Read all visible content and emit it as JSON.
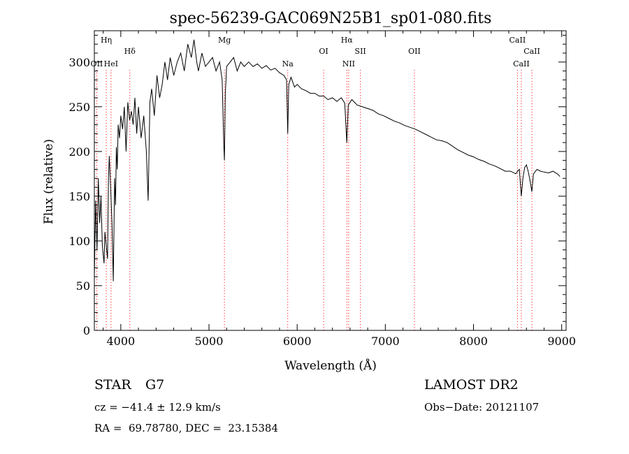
{
  "chart_data": {
    "type": "line",
    "title": "spec-56239-GAC069N25B1_sp01-080.fits",
    "xlabel": "Wavelength (Å)",
    "ylabel": "Flux (relative)",
    "xlim": [
      3700,
      9050
    ],
    "ylim": [
      0,
      335
    ],
    "x_ticks": [
      4000,
      5000,
      6000,
      7000,
      8000,
      9000
    ],
    "y_ticks": [
      0,
      50,
      100,
      150,
      200,
      250,
      300
    ],
    "grid": false,
    "legend": "none",
    "series_color": "#000000",
    "line_marker_color": "#ff0000",
    "series": [
      {
        "x": [
          3700,
          3715,
          3730,
          3745,
          3760,
          3775,
          3790,
          3800,
          3810,
          3820,
          3835,
          3850,
          3860,
          3870,
          3885,
          3900,
          3915,
          3930,
          3940,
          3950,
          3960,
          3970,
          3985,
          4000,
          4020,
          4040,
          4060,
          4080,
          4100,
          4120,
          4140,
          4160,
          4180,
          4200,
          4230,
          4260,
          4290,
          4310,
          4330,
          4350,
          4380,
          4410,
          4440,
          4470,
          4500,
          4530,
          4560,
          4600,
          4640,
          4680,
          4720,
          4760,
          4800,
          4830,
          4861,
          4880,
          4920,
          4960,
          5000,
          5040,
          5080,
          5120,
          5150,
          5167,
          5175,
          5185,
          5200,
          5240,
          5280,
          5320,
          5360,
          5400,
          5450,
          5500,
          5550,
          5600,
          5650,
          5700,
          5750,
          5800,
          5850,
          5880,
          5893,
          5905,
          5930,
          5970,
          6000,
          6050,
          6100,
          6150,
          6200,
          6250,
          6300,
          6350,
          6400,
          6450,
          6500,
          6540,
          6563,
          6580,
          6620,
          6680,
          6740,
          6800,
          6860,
          6920,
          6980,
          7040,
          7100,
          7160,
          7220,
          7280,
          7340,
          7400,
          7460,
          7520,
          7580,
          7640,
          7700,
          7760,
          7820,
          7880,
          7940,
          8000,
          8060,
          8120,
          8180,
          8240,
          8300,
          8360,
          8420,
          8480,
          8500,
          8520,
          8542,
          8560,
          8580,
          8600,
          8620,
          8640,
          8662,
          8680,
          8720,
          8760,
          8800,
          8850,
          8900,
          8950,
          8980
        ],
        "y": [
          60,
          145,
          90,
          170,
          120,
          150,
          95,
          85,
          75,
          110,
          95,
          80,
          170,
          195,
          160,
          120,
          55,
          170,
          140,
          205,
          180,
          230,
          215,
          240,
          225,
          250,
          200,
          255,
          235,
          245,
          230,
          260,
          220,
          250,
          215,
          240,
          200,
          145,
          255,
          270,
          240,
          285,
          260,
          275,
          300,
          280,
          305,
          285,
          300,
          310,
          290,
          320,
          305,
          325,
          300,
          290,
          310,
          295,
          300,
          305,
          290,
          300,
          280,
          210,
          190,
          265,
          295,
          300,
          305,
          290,
          300,
          295,
          300,
          295,
          298,
          293,
          296,
          291,
          293,
          288,
          285,
          280,
          220,
          275,
          283,
          272,
          275,
          270,
          268,
          265,
          265,
          262,
          262,
          258,
          260,
          256,
          260,
          254,
          210,
          252,
          258,
          252,
          250,
          248,
          246,
          242,
          240,
          237,
          234,
          232,
          229,
          227,
          225,
          222,
          219,
          216,
          213,
          212,
          210,
          206,
          202,
          199,
          196,
          194,
          191,
          189,
          186,
          184,
          181,
          178,
          178,
          175,
          178,
          180,
          150,
          170,
          182,
          185,
          178,
          168,
          155,
          175,
          180,
          178,
          177,
          176,
          178,
          175,
          172
        ]
      }
    ],
    "spectral_lines": [
      {
        "label": "Hη",
        "wavelength": 3835,
        "row": 0
      },
      {
        "label": "OII",
        "wavelength": 3727,
        "row": 2
      },
      {
        "label": "HeI",
        "wavelength": 3889,
        "row": 2
      },
      {
        "label": "Hδ",
        "wavelength": 4102,
        "row": 1
      },
      {
        "label": "Mg",
        "wavelength": 5175,
        "row": 0
      },
      {
        "label": "Na",
        "wavelength": 5893,
        "row": 2
      },
      {
        "label": "Hα",
        "wavelength": 6563,
        "row": 0
      },
      {
        "label": "OI",
        "wavelength": 6300,
        "row": 1
      },
      {
        "label": "NII",
        "wavelength": 6584,
        "row": 2
      },
      {
        "label": "SII",
        "wavelength": 6717,
        "row": 1
      },
      {
        "label": "OII",
        "wavelength": 7330,
        "row": 1
      },
      {
        "label": "CaII",
        "wavelength": 8498,
        "row": 0
      },
      {
        "label": "CaII",
        "wavelength": 8662,
        "row": 1
      },
      {
        "label": "CaII",
        "wavelength": 8542,
        "row": 2
      }
    ]
  },
  "info": {
    "object_class": "STAR",
    "subclass": "G7",
    "survey": "LAMOST DR2",
    "cz": "cz = −41.4 ± 12.9 km/s",
    "obs_date": "Obs−Date: 20121107",
    "coords": "RA =  69.78780, DEC =  23.15384"
  }
}
